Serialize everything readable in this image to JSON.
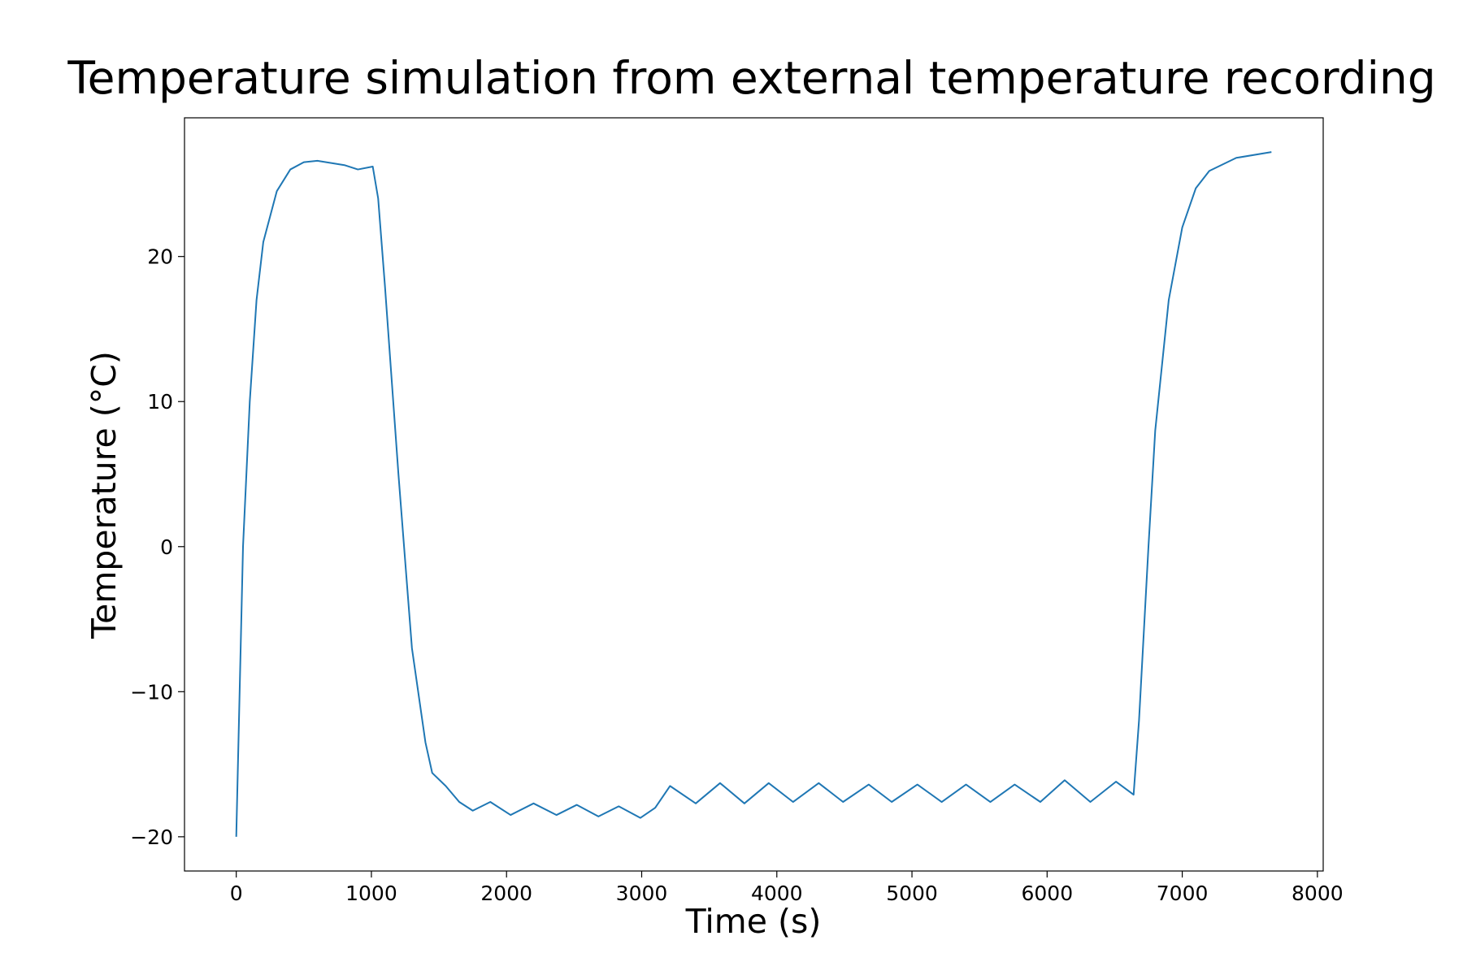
{
  "chart_data": {
    "type": "line",
    "title": "Temperature simulation from external temperature recording",
    "x_label": "Time (s)",
    "y_label": "Temperature (°C)",
    "xlim": [
      -383,
      8043
    ],
    "ylim": [
      -22.36,
      29.56
    ],
    "xticks": [
      0,
      1000,
      2000,
      3000,
      4000,
      5000,
      6000,
      7000,
      8000
    ],
    "yticks": [
      {
        "value": -20,
        "label": "−20"
      },
      {
        "value": -10,
        "label": "−10"
      },
      0,
      10,
      20
    ],
    "grid": false,
    "series": [
      {
        "color": "#1f77b4",
        "x": [
          0,
          50,
          100,
          150,
          200,
          300,
          400,
          500,
          600,
          800,
          900,
          1010,
          1050,
          1100,
          1200,
          1300,
          1400,
          1450,
          1550,
          1650,
          1750,
          1880,
          2030,
          2200,
          2370,
          2520,
          2680,
          2830,
          2990,
          3100,
          3210,
          3400,
          3580,
          3760,
          3940,
          4120,
          4310,
          4490,
          4680,
          4850,
          5040,
          5220,
          5400,
          5580,
          5760,
          5950,
          6130,
          6320,
          6510,
          6640,
          6680,
          6750,
          6800,
          6900,
          7000,
          7100,
          7200,
          7400,
          7660
        ],
        "values": [
          -20,
          0,
          10,
          17,
          21,
          24.5,
          26,
          26.5,
          26.6,
          26.3,
          26.0,
          26.2,
          24,
          18,
          5,
          -7,
          -13.5,
          -15.6,
          -16.5,
          -17.6,
          -18.2,
          -17.6,
          -18.5,
          -17.7,
          -18.5,
          -17.8,
          -18.6,
          -17.9,
          -18.7,
          -18.0,
          -16.5,
          -17.7,
          -16.3,
          -17.7,
          -16.3,
          -17.6,
          -16.3,
          -17.6,
          -16.4,
          -17.6,
          -16.4,
          -17.6,
          -16.4,
          -17.6,
          -16.4,
          -17.6,
          -16.1,
          -17.6,
          -16.2,
          -17.1,
          -12,
          0,
          8,
          17,
          22,
          24.7,
          25.9,
          26.8,
          27.2
        ]
      }
    ]
  }
}
